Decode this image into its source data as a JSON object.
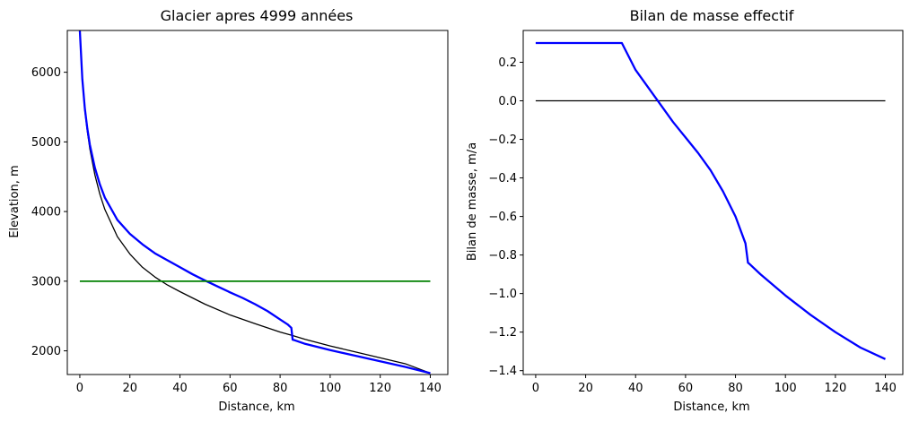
{
  "chart_data": [
    {
      "type": "line",
      "title": "Glacier apres 4999 années",
      "xlabel": "Distance, km",
      "ylabel": "Elevation, m",
      "xlim": [
        -5,
        147
      ],
      "ylim": [
        1660,
        6600
      ],
      "xticks": [
        0,
        20,
        40,
        60,
        80,
        100,
        120,
        140
      ],
      "yticks": [
        2000,
        3000,
        4000,
        5000,
        6000
      ],
      "grid": false,
      "series": [
        {
          "role": "bed",
          "color": "#000000",
          "x": [
            0,
            1,
            2,
            3,
            4,
            6,
            8,
            10,
            15,
            20,
            25,
            30,
            35,
            40,
            50,
            60,
            70,
            80,
            85,
            90,
            100,
            110,
            120,
            130,
            140
          ],
          "y": [
            6600,
            5880,
            5450,
            5150,
            4900,
            4530,
            4250,
            4030,
            3640,
            3390,
            3200,
            3060,
            2945,
            2850,
            2670,
            2515,
            2390,
            2270,
            2220,
            2165,
            2070,
            1985,
            1900,
            1815,
            1680
          ]
        },
        {
          "role": "surface",
          "color": "#0000ff",
          "x": [
            0,
            1,
            2,
            3,
            4,
            6,
            8,
            10,
            15,
            20,
            25,
            30,
            35,
            40,
            45,
            50,
            55,
            60,
            65,
            70,
            75,
            80,
            83,
            84.5,
            85,
            86,
            90,
            100,
            110,
            120,
            130,
            140
          ],
          "y": [
            6600,
            5900,
            5480,
            5190,
            4960,
            4630,
            4390,
            4200,
            3880,
            3680,
            3530,
            3400,
            3300,
            3200,
            3100,
            3010,
            2925,
            2840,
            2760,
            2670,
            2570,
            2450,
            2380,
            2330,
            2160,
            2150,
            2100,
            2010,
            1930,
            1850,
            1770,
            1680
          ]
        },
        {
          "role": "ela",
          "color": "#008000",
          "x": [
            0,
            140
          ],
          "y": [
            3000,
            3000
          ]
        }
      ]
    },
    {
      "type": "line",
      "title": "Bilan de masse effectif",
      "xlabel": "Distance, km",
      "ylabel": "Bilan de masse, m/a",
      "xlim": [
        -5,
        147
      ],
      "ylim": [
        -1.42,
        0.365
      ],
      "xticks": [
        0,
        20,
        40,
        60,
        80,
        100,
        120,
        140
      ],
      "yticks": [
        0.2,
        0.0,
        -0.2,
        -0.4,
        -0.6,
        -0.8,
        -1.0,
        -1.2,
        -1.4
      ],
      "grid": false,
      "series": [
        {
          "role": "zero-line",
          "color": "#000000",
          "x": [
            0,
            140
          ],
          "y": [
            0,
            0
          ]
        },
        {
          "role": "mass-balance",
          "color": "#0000ff",
          "x": [
            0,
            34.5,
            40,
            45,
            50,
            55,
            60,
            65,
            70,
            75,
            80,
            84,
            85,
            85.5,
            90,
            100,
            110,
            120,
            130,
            140
          ],
          "y": [
            0.3,
            0.3,
            0.16,
            0.07,
            -0.02,
            -0.11,
            -0.19,
            -0.27,
            -0.36,
            -0.47,
            -0.6,
            -0.74,
            -0.84,
            -0.845,
            -0.9,
            -1.01,
            -1.11,
            -1.2,
            -1.28,
            -1.34
          ]
        }
      ]
    }
  ]
}
